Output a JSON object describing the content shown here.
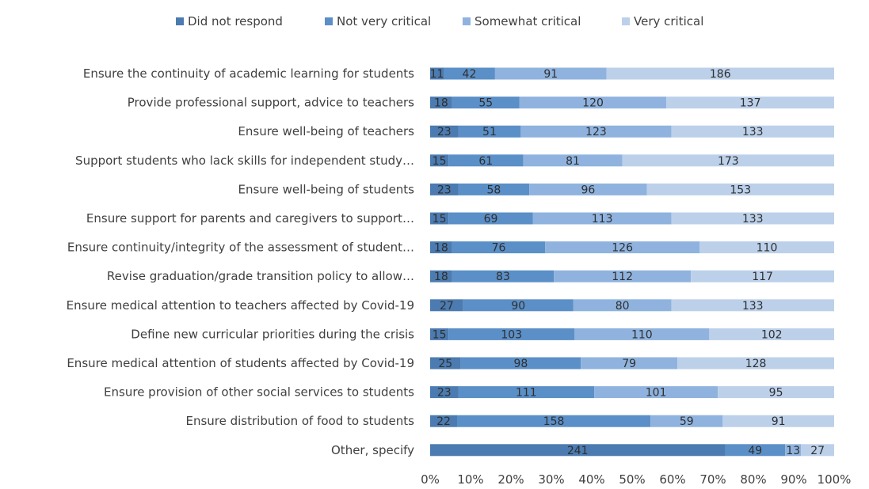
{
  "chart_data": {
    "type": "bar",
    "orientation": "horizontal",
    "stacked": "percent",
    "title": "",
    "xlabel": "",
    "ylabel": "",
    "xlim": [
      0,
      100
    ],
    "x_ticks": [
      "0%",
      "10%",
      "20%",
      "30%",
      "40%",
      "50%",
      "60%",
      "70%",
      "80%",
      "90%",
      "100%"
    ],
    "legend_position": "top",
    "grid": false,
    "categories": [
      "Ensure the continuity of academic learning for students",
      "Provide professional support, advice to teachers",
      "Ensure well-being of teachers",
      "Support students who lack skills for independent study…",
      "Ensure well-being of students",
      "Ensure support for parents and caregivers to support…",
      "Ensure continuity/integrity of the assessment of student…",
      "Revise graduation/grade transition policy to allow…",
      "Ensure medical attention to teachers affected by Covid-19",
      "Define new curricular priorities during the crisis",
      "Ensure medical attention of students affected by Covid-19",
      "Ensure provision of other social services to students",
      "Ensure distribution of food to students",
      "Other, specify"
    ],
    "series": [
      {
        "name": "Did not respond",
        "color": "#4b7bb0",
        "values": [
          11,
          18,
          23,
          15,
          23,
          15,
          18,
          18,
          27,
          15,
          25,
          23,
          22,
          241
        ]
      },
      {
        "name": "Not very critical",
        "color": "#5b8fc7",
        "values": [
          42,
          55,
          51,
          61,
          58,
          69,
          76,
          83,
          90,
          103,
          98,
          111,
          158,
          49
        ]
      },
      {
        "name": "Somewhat critical",
        "color": "#8fb3de",
        "values": [
          91,
          120,
          123,
          81,
          96,
          113,
          126,
          112,
          80,
          110,
          79,
          101,
          59,
          13
        ]
      },
      {
        "name": "Very critical",
        "color": "#bcd0ea",
        "values": [
          186,
          137,
          133,
          173,
          153,
          133,
          110,
          117,
          133,
          102,
          128,
          95,
          91,
          27
        ]
      }
    ]
  }
}
